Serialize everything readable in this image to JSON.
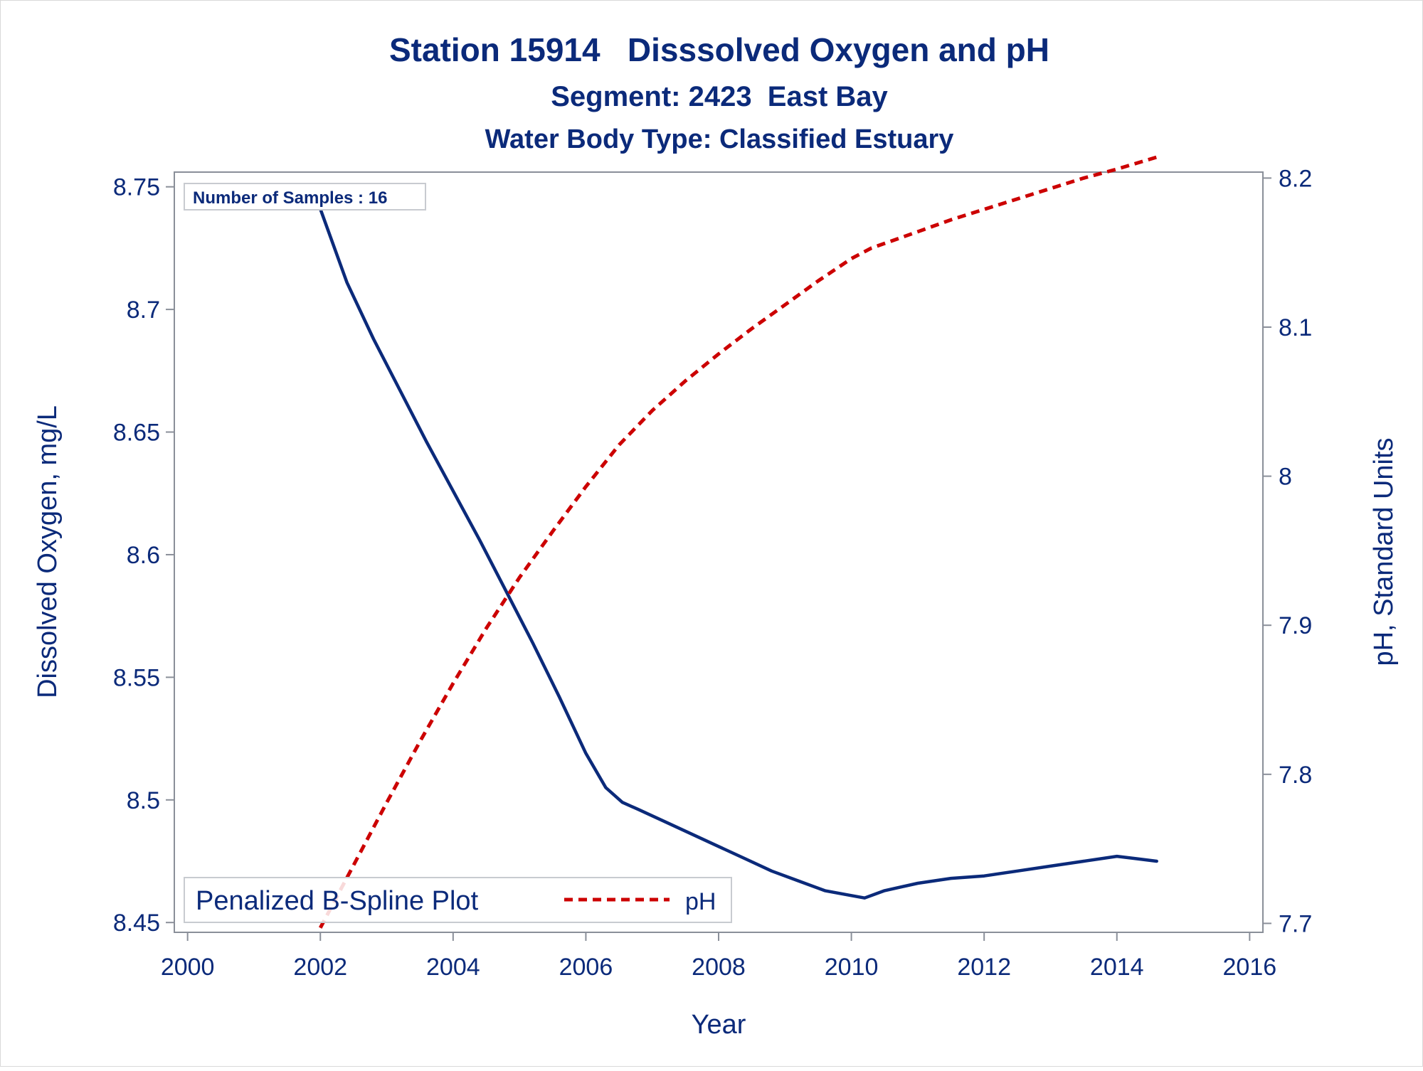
{
  "chart_data": {
    "type": "line",
    "title": "Station 15914   Disssolved Oxygen and pH",
    "subtitle": "Segment: 2423  East Bay",
    "subtitle2": "Water Body Type: Classified Estuary",
    "xlabel": "Year",
    "ylabel": "Dissolved Oxygen, mg/L",
    "y2label": "pH, Standard Units",
    "xlim": [
      1999.8,
      2016.2
    ],
    "ylim": [
      8.446,
      8.756
    ],
    "y2lim": [
      7.694,
      8.204
    ],
    "x_ticks": [
      2000,
      2002,
      2004,
      2006,
      2008,
      2010,
      2012,
      2014,
      2016
    ],
    "y_ticks": [
      8.45,
      8.5,
      8.55,
      8.6,
      8.65,
      8.7,
      8.75
    ],
    "y2_ticks": [
      7.7,
      7.8,
      7.9,
      8.0,
      8.1,
      8.2
    ],
    "grid": false,
    "inset_text": "Number of Samples : 16",
    "legend": {
      "placement": "bottom-left",
      "title": "Penalized B-Spline Plot",
      "entries": [
        "pH"
      ]
    },
    "colors": {
      "do": "#0b2a7a",
      "ph": "#cc0000",
      "text": "#0b2a7a",
      "axis": "#8a8f99"
    },
    "series": [
      {
        "name": "Dissolved Oxygen",
        "axis": "left",
        "style": "solid",
        "x": [
          2002.0,
          2002.4,
          2002.8,
          2003.2,
          2003.6,
          2004.0,
          2004.4,
          2004.8,
          2005.2,
          2005.6,
          2006.0,
          2006.3,
          2006.55,
          2006.8,
          2007.2,
          2007.6,
          2008.0,
          2008.4,
          2008.8,
          2009.2,
          2009.6,
          2010.0,
          2010.2,
          2010.5,
          2011.0,
          2011.5,
          2012.0,
          2012.5,
          2013.0,
          2013.5,
          2014.0,
          2014.3,
          2014.6
        ],
        "y": [
          8.741,
          8.711,
          8.688,
          8.667,
          8.646,
          8.626,
          8.606,
          8.585,
          8.564,
          8.542,
          8.519,
          8.505,
          8.499,
          8.496,
          8.491,
          8.486,
          8.481,
          8.476,
          8.471,
          8.467,
          8.463,
          8.461,
          8.46,
          8.463,
          8.466,
          8.468,
          8.469,
          8.471,
          8.473,
          8.475,
          8.477,
          8.476,
          8.475
        ]
      },
      {
        "name": "pH",
        "axis": "right",
        "style": "dashed",
        "x": [
          2002.0,
          2002.5,
          2003.0,
          2003.5,
          2004.0,
          2004.5,
          2005.0,
          2005.5,
          2006.0,
          2006.5,
          2007.0,
          2007.5,
          2008.0,
          2008.5,
          2009.0,
          2009.5,
          2010.0,
          2010.3,
          2011.0,
          2011.5,
          2012.0,
          2012.5,
          2013.0,
          2013.5,
          2014.0,
          2014.6
        ],
        "y": [
          7.697,
          7.739,
          7.781,
          7.822,
          7.861,
          7.898,
          7.932,
          7.963,
          7.993,
          8.021,
          8.044,
          8.064,
          8.082,
          8.099,
          8.115,
          8.131,
          8.146,
          8.153,
          8.164,
          8.172,
          8.179,
          8.186,
          8.193,
          8.2,
          8.206,
          8.214
        ]
      }
    ]
  }
}
